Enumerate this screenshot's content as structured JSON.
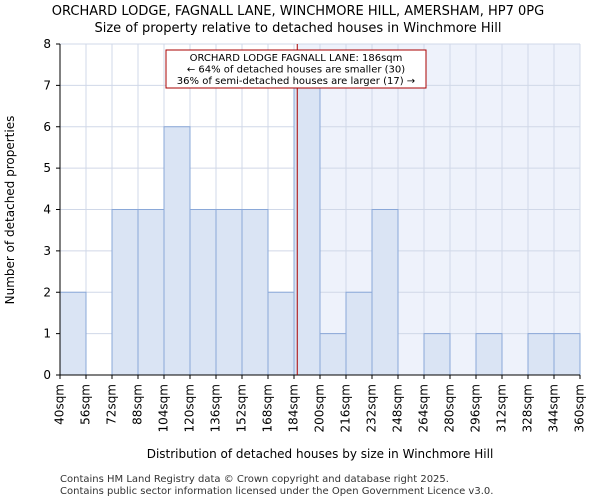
{
  "chart_data": {
    "type": "bar",
    "title": "ORCHARD LODGE, FAGNALL LANE, WINCHMORE HILL, AMERSHAM, HP7 0PG",
    "subtitle": "Size of property relative to detached houses in Winchmore Hill",
    "xlabel": "Distribution of detached houses by size in Winchmore Hill",
    "ylabel": "Number of detached properties",
    "bin_edges": [
      40,
      56,
      72,
      88,
      104,
      120,
      136,
      152,
      168,
      184,
      200,
      216,
      232,
      248,
      264,
      280,
      296,
      312,
      328,
      344,
      360
    ],
    "x_tick_labels": [
      "40sqm",
      "56sqm",
      "72sqm",
      "88sqm",
      "104sqm",
      "120sqm",
      "136sqm",
      "152sqm",
      "168sqm",
      "184sqm",
      "200sqm",
      "216sqm",
      "232sqm",
      "248sqm",
      "264sqm",
      "280sqm",
      "296sqm",
      "312sqm",
      "328sqm",
      "344sqm",
      "360sqm"
    ],
    "values": [
      2,
      0,
      4,
      4,
      6,
      4,
      4,
      4,
      2,
      7,
      1,
      2,
      4,
      0,
      1,
      0,
      1,
      0,
      1,
      1
    ],
    "ylim": [
      0,
      8
    ],
    "y_ticks": [
      0,
      1,
      2,
      3,
      4,
      5,
      6,
      7,
      8
    ],
    "grid": true,
    "marker": {
      "value": 186,
      "color": "#aa0000"
    },
    "annotation": {
      "lines": [
        "ORCHARD LODGE FAGNALL LANE: 186sqm",
        "← 64% of detached houses are smaller (30)",
        "36% of semi-detached houses are larger (17) →"
      ]
    },
    "colors": {
      "bar_fill": "#dae4f4",
      "bar_stroke": "#8aa8d8",
      "shaded_region": "#eef2fb",
      "grid": "#d0d8e8",
      "annotation_border": "#aa0000"
    }
  },
  "footer": {
    "line1": "Contains HM Land Registry data © Crown copyright and database right 2025.",
    "line2": "Contains public sector information licensed under the Open Government Licence v3.0."
  }
}
